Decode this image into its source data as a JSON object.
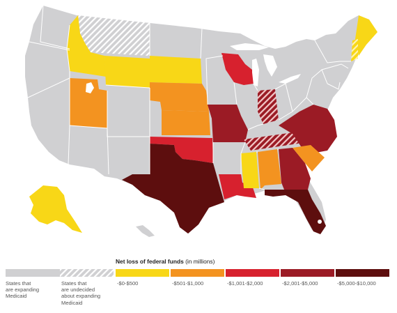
{
  "colors": {
    "expanding": "#d0d0d2",
    "undecided_stripe": "#ffffff",
    "bin1": "#f8d717",
    "bin2": "#f39320",
    "bin3": "#d7212e",
    "bin4": "#9b1b25",
    "bin5": "#5d0e0e"
  },
  "legend": {
    "title": "Net loss of federal funds",
    "unit": "(in millions)",
    "items": [
      {
        "lines": [
          "States that",
          "are expanding",
          "Medicaid"
        ]
      },
      {
        "lines": [
          "States that",
          "are undecided",
          "about expanding",
          "Medicaid"
        ]
      },
      {
        "lines": [
          "-$0-$500"
        ]
      },
      {
        "lines": [
          "-$501-$1,000"
        ]
      },
      {
        "lines": [
          "-$1,001-$2,000"
        ]
      },
      {
        "lines": [
          "-$2,001-$5,000"
        ]
      },
      {
        "lines": [
          "-$5,000-$10,000"
        ]
      }
    ]
  }
}
